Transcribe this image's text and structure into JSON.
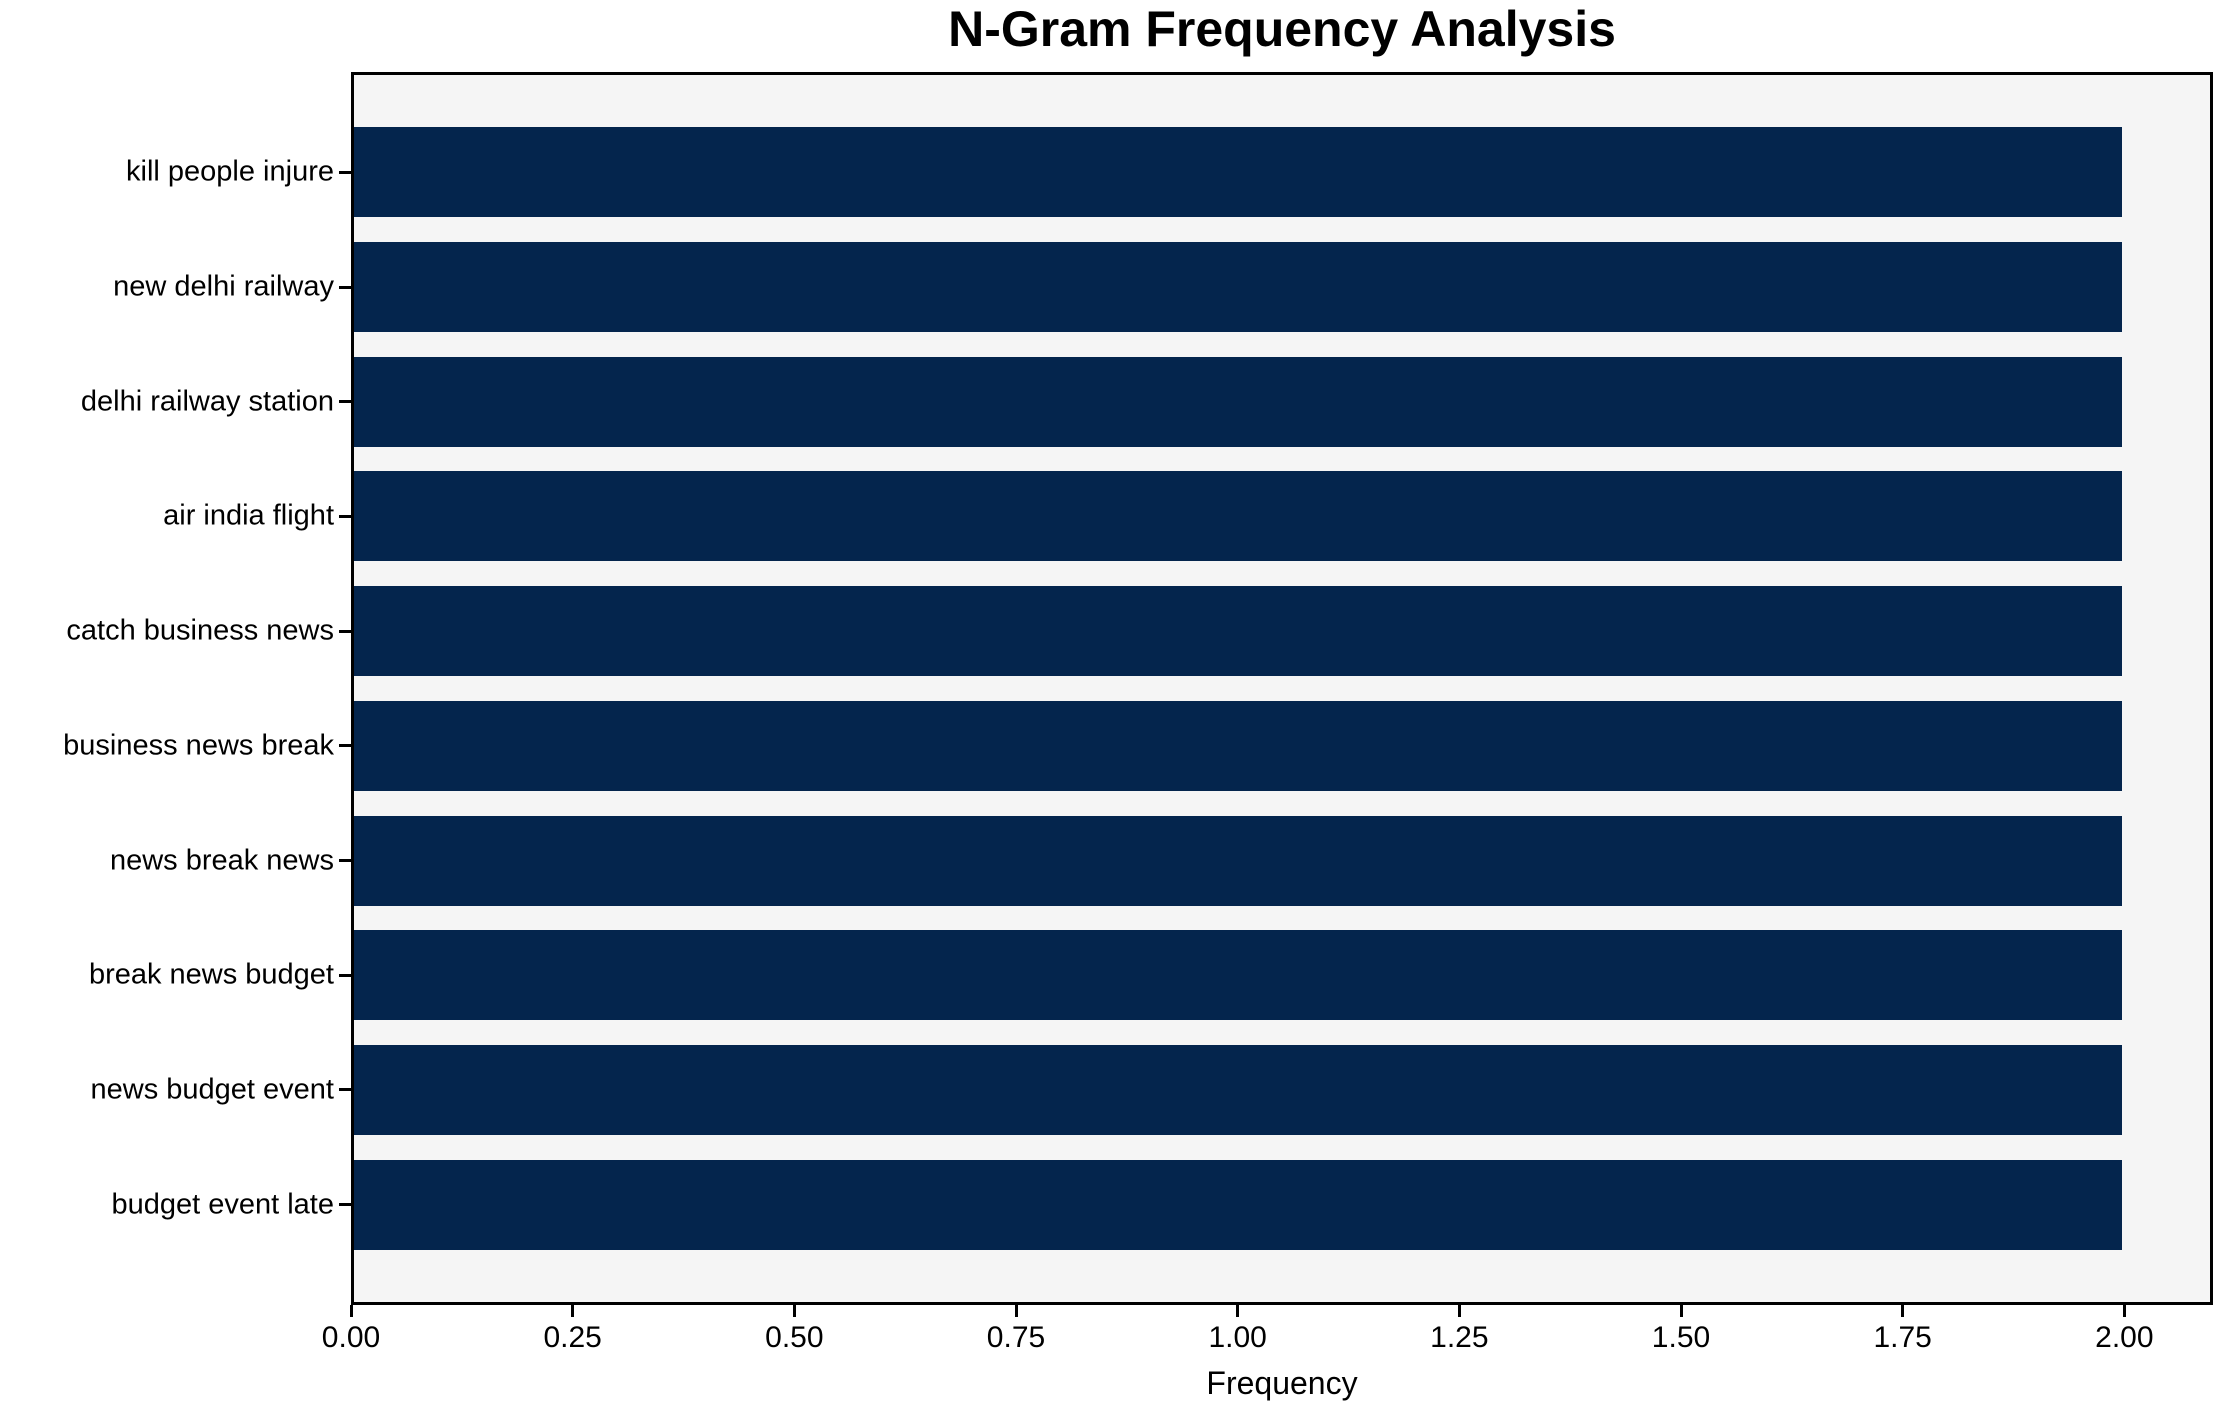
{
  "chart_data": {
    "type": "bar",
    "orientation": "horizontal",
    "title": "N-Gram Frequency Analysis",
    "xlabel": "Frequency",
    "ylabel": "",
    "categories": [
      "kill people injure",
      "new delhi railway",
      "delhi railway station",
      "air india flight",
      "catch business news",
      "business news break",
      "news break news",
      "break news budget",
      "news budget event",
      "budget event late"
    ],
    "values": [
      2,
      2,
      2,
      2,
      2,
      2,
      2,
      2,
      2,
      2
    ],
    "xlim": [
      0,
      2.1
    ],
    "xtick_labels": [
      "0.00",
      "0.25",
      "0.50",
      "0.75",
      "1.00",
      "1.25",
      "1.50",
      "1.75",
      "2.00"
    ],
    "xtick_values": [
      0.0,
      0.25,
      0.5,
      0.75,
      1.0,
      1.25,
      1.5,
      1.75,
      2.0
    ],
    "grid": false,
    "legend_position": "none",
    "colors": {
      "bar": "#04254d",
      "plot_background": "#f5f5f5",
      "figure_background": "#ffffff",
      "spine": "#000000",
      "text": "#000000"
    }
  }
}
